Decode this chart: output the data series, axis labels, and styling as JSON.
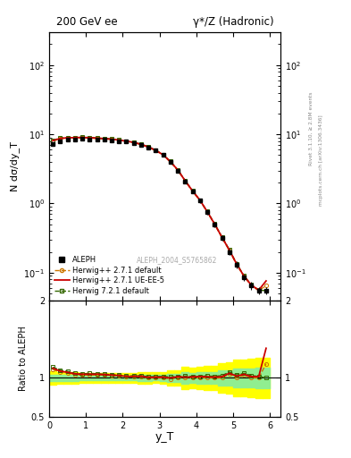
{
  "title_left": "200 GeV ee",
  "title_right": "γ*/Z (Hadronic)",
  "ylabel_main": "N dσ/dy_T",
  "ylabel_ratio": "Ratio to ALEPH",
  "xlabel": "y_T",
  "right_label_top": "Rivet 3.1.10, ≥ 2.8M events",
  "right_label_bot": "mcplots.cern.ch [arXiv:1306.3436]",
  "watermark": "ALEPH_2004_S5765862",
  "ylim_main": [
    0.04,
    300
  ],
  "ylim_ratio": [
    0.5,
    2.0
  ],
  "xlim": [
    0,
    6.3
  ],
  "aleph_x": [
    0.1,
    0.3,
    0.5,
    0.7,
    0.9,
    1.1,
    1.3,
    1.5,
    1.7,
    1.9,
    2.1,
    2.3,
    2.5,
    2.7,
    2.9,
    3.1,
    3.3,
    3.5,
    3.7,
    3.9,
    4.1,
    4.3,
    4.5,
    4.7,
    4.9,
    5.1,
    5.3,
    5.5,
    5.7,
    5.9
  ],
  "aleph_y": [
    7.2,
    8.0,
    8.3,
    8.5,
    8.6,
    8.5,
    8.4,
    8.3,
    8.2,
    8.0,
    7.8,
    7.5,
    7.0,
    6.5,
    5.8,
    5.0,
    4.0,
    3.0,
    2.1,
    1.5,
    1.1,
    0.75,
    0.5,
    0.32,
    0.2,
    0.13,
    0.085,
    0.065,
    0.055,
    0.055
  ],
  "aleph_yerr": [
    0.3,
    0.3,
    0.3,
    0.3,
    0.25,
    0.25,
    0.25,
    0.25,
    0.25,
    0.25,
    0.25,
    0.25,
    0.25,
    0.25,
    0.2,
    0.2,
    0.2,
    0.15,
    0.15,
    0.1,
    0.08,
    0.06,
    0.04,
    0.03,
    0.02,
    0.015,
    0.01,
    0.008,
    0.007,
    0.007
  ],
  "hw271_default_x": [
    0.1,
    0.3,
    0.5,
    0.7,
    0.9,
    1.1,
    1.3,
    1.5,
    1.7,
    1.9,
    2.1,
    2.3,
    2.5,
    2.7,
    2.9,
    3.1,
    3.3,
    3.5,
    3.7,
    3.9,
    4.1,
    4.3,
    4.5,
    4.7,
    4.9,
    5.1,
    5.3,
    5.5,
    5.7,
    5.9
  ],
  "hw271_default_y": [
    8.0,
    8.6,
    8.8,
    8.85,
    8.9,
    8.85,
    8.7,
    8.6,
    8.45,
    8.2,
    7.9,
    7.6,
    7.1,
    6.5,
    5.8,
    5.0,
    3.95,
    3.0,
    2.1,
    1.5,
    1.1,
    0.75,
    0.5,
    0.32,
    0.21,
    0.13,
    0.088,
    0.065,
    0.055,
    0.065
  ],
  "hw271_ueee5_x": [
    0.1,
    0.3,
    0.5,
    0.7,
    0.9,
    1.1,
    1.3,
    1.5,
    1.7,
    1.9,
    2.1,
    2.3,
    2.5,
    2.7,
    2.9,
    3.1,
    3.3,
    3.5,
    3.7,
    3.9,
    4.1,
    4.3,
    4.5,
    4.7,
    4.9,
    5.1,
    5.3,
    5.5,
    5.7,
    5.9
  ],
  "hw271_ueee5_y": [
    8.1,
    8.7,
    8.9,
    8.95,
    9.0,
    8.9,
    8.8,
    8.65,
    8.5,
    8.25,
    7.95,
    7.65,
    7.15,
    6.55,
    5.85,
    5.05,
    4.0,
    3.05,
    2.12,
    1.52,
    1.12,
    0.76,
    0.505,
    0.325,
    0.212,
    0.133,
    0.089,
    0.066,
    0.056,
    0.076
  ],
  "hw721_default_x": [
    0.1,
    0.3,
    0.5,
    0.7,
    0.9,
    1.1,
    1.3,
    1.5,
    1.7,
    1.9,
    2.1,
    2.3,
    2.5,
    2.7,
    2.9,
    3.1,
    3.3,
    3.5,
    3.7,
    3.9,
    4.1,
    4.3,
    4.5,
    4.7,
    4.9,
    5.1,
    5.3,
    5.5,
    5.7,
    5.9
  ],
  "hw721_default_y": [
    8.2,
    8.8,
    9.0,
    9.0,
    9.05,
    9.0,
    8.85,
    8.7,
    8.55,
    8.3,
    8.0,
    7.7,
    7.2,
    6.6,
    5.9,
    5.1,
    4.05,
    3.05,
    2.15,
    1.53,
    1.12,
    0.77,
    0.51,
    0.33,
    0.215,
    0.135,
    0.09,
    0.067,
    0.056,
    0.055
  ],
  "legend_entries": [
    "ALEPH",
    "Herwig++ 2.7.1 default",
    "Herwig++ 2.7.1 UE-EE-5",
    "Herwig 7.2.1 default"
  ],
  "color_aleph": "#000000",
  "color_hw271_default": "#cc7700",
  "color_hw271_ueee5": "#cc0000",
  "color_hw721_default": "#336600",
  "ratio_yellow_band": "#ffff00",
  "ratio_green_band": "#90ee90",
  "background_color": "#ffffff",
  "ratio_yticks": [
    0.5,
    1.0,
    2.0
  ],
  "ratio_yticklabels": [
    "0.5",
    "1",
    "2"
  ]
}
